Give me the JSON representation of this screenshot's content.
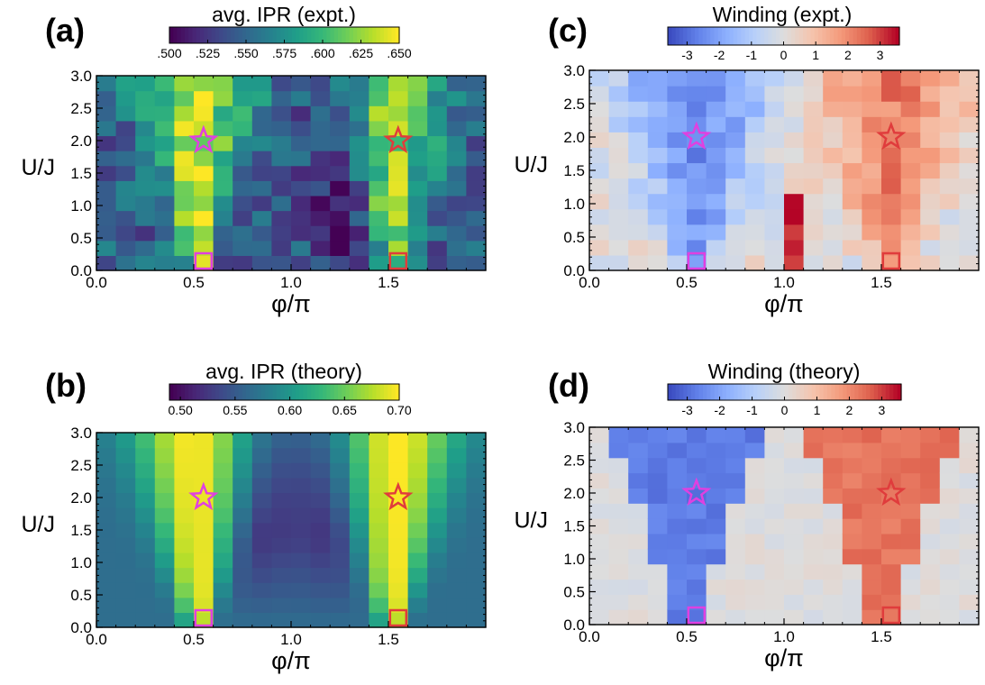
{
  "chart_data": [
    {
      "type": "heatmap",
      "panel_label": "(a)",
      "colorbar_title": "avg. IPR (expt.)",
      "colormap": "viridis",
      "range": [
        0.5,
        0.65
      ],
      "colorbar_ticks": [
        ".500",
        ".525",
        ".550",
        ".575",
        ".600",
        ".625",
        ".650"
      ],
      "xlabel": "φ/π",
      "ylabel": "U/J",
      "xticks": [
        "0.0",
        "0.5",
        "1.0",
        "1.5"
      ],
      "yticks": [
        "0.0",
        "0.5",
        "1.0",
        "1.5",
        "2.0",
        "2.5",
        "3.0"
      ],
      "xlim": [
        0,
        2
      ],
      "ylim": [
        0,
        3
      ],
      "markers": [
        {
          "shape": "star",
          "x": 0.55,
          "y": 2.0,
          "color": "#e040e0"
        },
        {
          "shape": "star",
          "x": 1.55,
          "y": 2.0,
          "color": "#e03c3c"
        },
        {
          "shape": "square",
          "x": 0.55,
          "y": 0.05,
          "color": "#e040e0"
        },
        {
          "shape": "square",
          "x": 1.55,
          "y": 0.05,
          "color": "#e03c3c"
        }
      ]
    },
    {
      "type": "heatmap",
      "panel_label": "(b)",
      "colorbar_title": "avg. IPR (theory)",
      "colormap": "viridis",
      "range": [
        0.49,
        0.7
      ],
      "colorbar_ticks": [
        "0.50",
        "0.55",
        "0.60",
        "0.65",
        "0.70"
      ],
      "xlabel": "φ/π",
      "ylabel": "U/J",
      "xticks": [
        "0.0",
        "0.5",
        "1.0",
        "1.5"
      ],
      "yticks": [
        "0.0",
        "0.5",
        "1.0",
        "1.5",
        "2.0",
        "2.5",
        "3.0"
      ],
      "xlim": [
        0,
        2
      ],
      "ylim": [
        0,
        3
      ],
      "markers": [
        {
          "shape": "star",
          "x": 0.55,
          "y": 2.0,
          "color": "#e040e0"
        },
        {
          "shape": "star",
          "x": 1.55,
          "y": 2.0,
          "color": "#e03c3c"
        },
        {
          "shape": "square",
          "x": 0.55,
          "y": 0.05,
          "color": "#e040e0"
        },
        {
          "shape": "square",
          "x": 1.55,
          "y": 0.05,
          "color": "#e03c3c"
        }
      ]
    },
    {
      "type": "heatmap",
      "panel_label": "(c)",
      "colorbar_title": "Winding (expt.)",
      "colormap": "coolwarm",
      "range": [
        -3.6,
        3.6
      ],
      "colorbar_ticks": [
        "-3",
        "-2",
        "-1",
        "0",
        "1",
        "2",
        "3"
      ],
      "xlabel": "φ/π",
      "ylabel": "U/J",
      "xticks": [
        "0.0",
        "0.5",
        "1.0",
        "1.5"
      ],
      "yticks": [
        "0.0",
        "0.5",
        "1.0",
        "1.5",
        "2.0",
        "2.5",
        "3.0"
      ],
      "xlim": [
        0,
        2
      ],
      "ylim": [
        0,
        3
      ],
      "markers": [
        {
          "shape": "star",
          "x": 0.55,
          "y": 2.0,
          "color": "#e040e0"
        },
        {
          "shape": "star",
          "x": 1.55,
          "y": 2.0,
          "color": "#e03c3c"
        },
        {
          "shape": "square",
          "x": 0.55,
          "y": 0.05,
          "color": "#e040e0"
        },
        {
          "shape": "square",
          "x": 1.55,
          "y": 0.05,
          "color": "#e03c3c"
        }
      ]
    },
    {
      "type": "heatmap",
      "panel_label": "(d)",
      "colorbar_title": "Winding (theory)",
      "colormap": "coolwarm",
      "range": [
        -3.6,
        3.6
      ],
      "colorbar_ticks": [
        "-3",
        "-2",
        "-1",
        "0",
        "1",
        "2",
        "3"
      ],
      "xlabel": "φ/π",
      "ylabel": "U/J",
      "xticks": [
        "0.0",
        "0.5",
        "1.0",
        "1.5"
      ],
      "yticks": [
        "0.0",
        "0.5",
        "1.0",
        "1.5",
        "2.0",
        "2.5",
        "3.0"
      ],
      "xlim": [
        0,
        2
      ],
      "ylim": [
        0,
        3
      ],
      "markers": [
        {
          "shape": "star",
          "x": 0.55,
          "y": 2.0,
          "color": "#e040e0"
        },
        {
          "shape": "star",
          "x": 1.55,
          "y": 2.0,
          "color": "#e03c3c"
        },
        {
          "shape": "square",
          "x": 0.55,
          "y": 0.05,
          "color": "#e040e0"
        },
        {
          "shape": "square",
          "x": 1.55,
          "y": 0.05,
          "color": "#e03c3c"
        }
      ]
    }
  ]
}
